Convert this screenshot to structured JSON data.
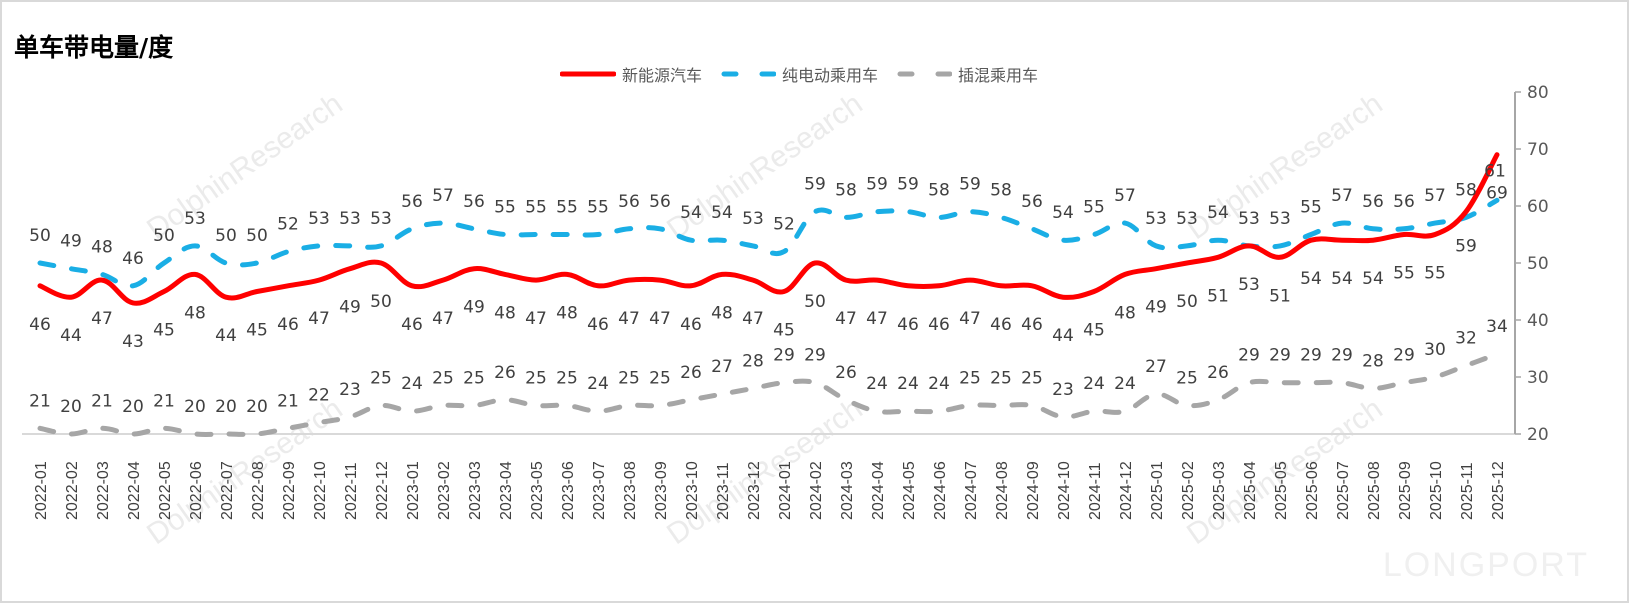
{
  "header": {
    "title": "单车带电量/度"
  },
  "legend": [
    {
      "label": "新能源汽车",
      "color": "#ff0000",
      "style": "solid"
    },
    {
      "label": "纯电动乘用车",
      "color": "#1aaee5",
      "style": "dashed"
    },
    {
      "label": "插混乘用车",
      "color": "#a6a6a6",
      "style": "dashed"
    }
  ],
  "watermarks": {
    "text": "DolphinResearch",
    "brand": "LONGPORT"
  },
  "chart_data": {
    "type": "line",
    "title": "单车带电量/度",
    "xlabel": "",
    "ylabel": "",
    "ylim": [
      20,
      80
    ],
    "yticks": [
      20,
      30,
      40,
      50,
      60,
      70,
      80
    ],
    "y_axis_position": "right",
    "grid": false,
    "legend_position": "top",
    "x": [
      "2022-01",
      "2022-02",
      "2022-03",
      "2022-04",
      "2022-05",
      "2022-06",
      "2022-07",
      "2022-08",
      "2022-09",
      "2022-10",
      "2022-11",
      "2022-12",
      "2023-01",
      "2023-02",
      "2023-03",
      "2023-04",
      "2023-05",
      "2023-06",
      "2023-07",
      "2023-08",
      "2023-09",
      "2023-10",
      "2023-11",
      "2023-12",
      "2024-01",
      "2024-02",
      "2024-03",
      "2024-04",
      "2024-05",
      "2024-06",
      "2024-07",
      "2024-08",
      "2024-09",
      "2024-10",
      "2024-11",
      "2024-12",
      "2025-01",
      "2025-02",
      "2025-03",
      "2025-04",
      "2025-05",
      "2025-06",
      "2025-07",
      "2025-08",
      "2025-09",
      "2025-10",
      "2025-11",
      "2025-12"
    ],
    "series": [
      {
        "name": "新能源汽车",
        "color": "#ff0000",
        "dash": "solid",
        "values": [
          46,
          44,
          47,
          43,
          45,
          48,
          44,
          45,
          46,
          47,
          49,
          50,
          46,
          47,
          49,
          48,
          47,
          48,
          46,
          47,
          47,
          46,
          48,
          47,
          45,
          50,
          47,
          47,
          46,
          46,
          47,
          46,
          46,
          44,
          45,
          48,
          49,
          50,
          51,
          53,
          51,
          54,
          54,
          54,
          55,
          55,
          59,
          69
        ]
      },
      {
        "name": "纯电动乘用车",
        "color": "#1aaee5",
        "dash": "dashed",
        "values": [
          50,
          49,
          48,
          46,
          50,
          53,
          50,
          50,
          52,
          53,
          53,
          53,
          56,
          57,
          56,
          55,
          55,
          55,
          55,
          56,
          56,
          54,
          54,
          53,
          52,
          59,
          58,
          59,
          59,
          58,
          59,
          58,
          56,
          54,
          55,
          57,
          53,
          53,
          54,
          53,
          53,
          55,
          57,
          56,
          56,
          57,
          58,
          61
        ]
      },
      {
        "name": "插混乘用车",
        "color": "#a6a6a6",
        "dash": "dashed",
        "values": [
          21,
          20,
          21,
          20,
          21,
          20,
          20,
          20,
          21,
          22,
          23,
          25,
          24,
          25,
          25,
          26,
          25,
          25,
          24,
          25,
          25,
          26,
          27,
          28,
          29,
          29,
          26,
          24,
          24,
          24,
          25,
          25,
          25,
          23,
          24,
          24,
          27,
          25,
          26,
          29,
          29,
          29,
          29,
          28,
          29,
          30,
          32,
          34
        ]
      }
    ]
  }
}
